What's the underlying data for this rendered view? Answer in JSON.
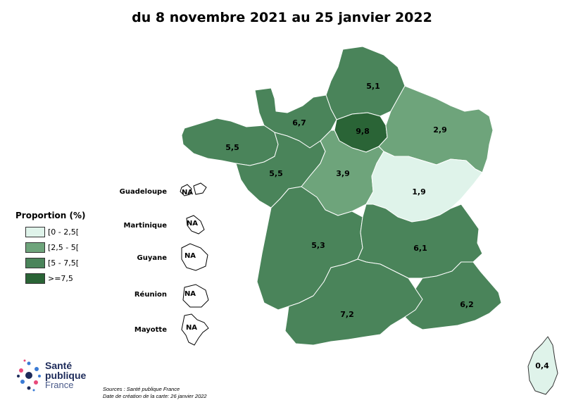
{
  "title": "du 8 novembre 2021 au 25 janvier 2022",
  "legend": {
    "title": "Proportion (%)",
    "items": [
      {
        "label": "[0 - 2,5[",
        "color": "#dff3ea"
      },
      {
        "label": "[2,5 - 5[",
        "color": "#6ea47b"
      },
      {
        "label": "[5 - 7,5[",
        "color": "#4a845a"
      },
      {
        "label": ">=7,5",
        "color": "#2a6436"
      }
    ]
  },
  "regions": [
    {
      "name": "Hauts-de-France",
      "value": "5,1",
      "color": "#4a845a"
    },
    {
      "name": "Normandie",
      "value": "6,7",
      "color": "#4a845a"
    },
    {
      "name": "Île-de-France",
      "value": "9,8",
      "color": "#2a6436"
    },
    {
      "name": "Grand Est",
      "value": "2,9",
      "color": "#6ea47b"
    },
    {
      "name": "Bretagne",
      "value": "5,5",
      "color": "#4a845a"
    },
    {
      "name": "Pays de la Loire",
      "value": "5,5",
      "color": "#4a845a"
    },
    {
      "name": "Centre-Val de Loire",
      "value": "3,9",
      "color": "#6ea47b"
    },
    {
      "name": "Bourgogne-Franche-Comté",
      "value": "1,9",
      "color": "#dff3ea"
    },
    {
      "name": "Nouvelle-Aquitaine",
      "value": "5,3",
      "color": "#4a845a"
    },
    {
      "name": "Auvergne-Rhône-Alpes",
      "value": "6,1",
      "color": "#4a845a"
    },
    {
      "name": "Occitanie",
      "value": "7,2",
      "color": "#4a845a"
    },
    {
      "name": "Provence-Alpes-Côte d'Azur",
      "value": "6,2",
      "color": "#4a845a"
    },
    {
      "name": "Corse",
      "value": "0,4",
      "color": "#dff3ea"
    }
  ],
  "overseas": [
    {
      "label": "Guadeloupe",
      "value": "NA"
    },
    {
      "label": "Martinique",
      "value": "NA"
    },
    {
      "label": "Guyane",
      "value": "NA"
    },
    {
      "label": "Réunion",
      "value": "NA"
    },
    {
      "label": "Mayotte",
      "value": "NA"
    }
  ],
  "logo": {
    "line1": "Santé",
    "line2": "publique",
    "line3": "France"
  },
  "sources": {
    "line1": "Sources : Santé publique France",
    "line2": "Date de création de la carte: 26 janvier 2022"
  }
}
